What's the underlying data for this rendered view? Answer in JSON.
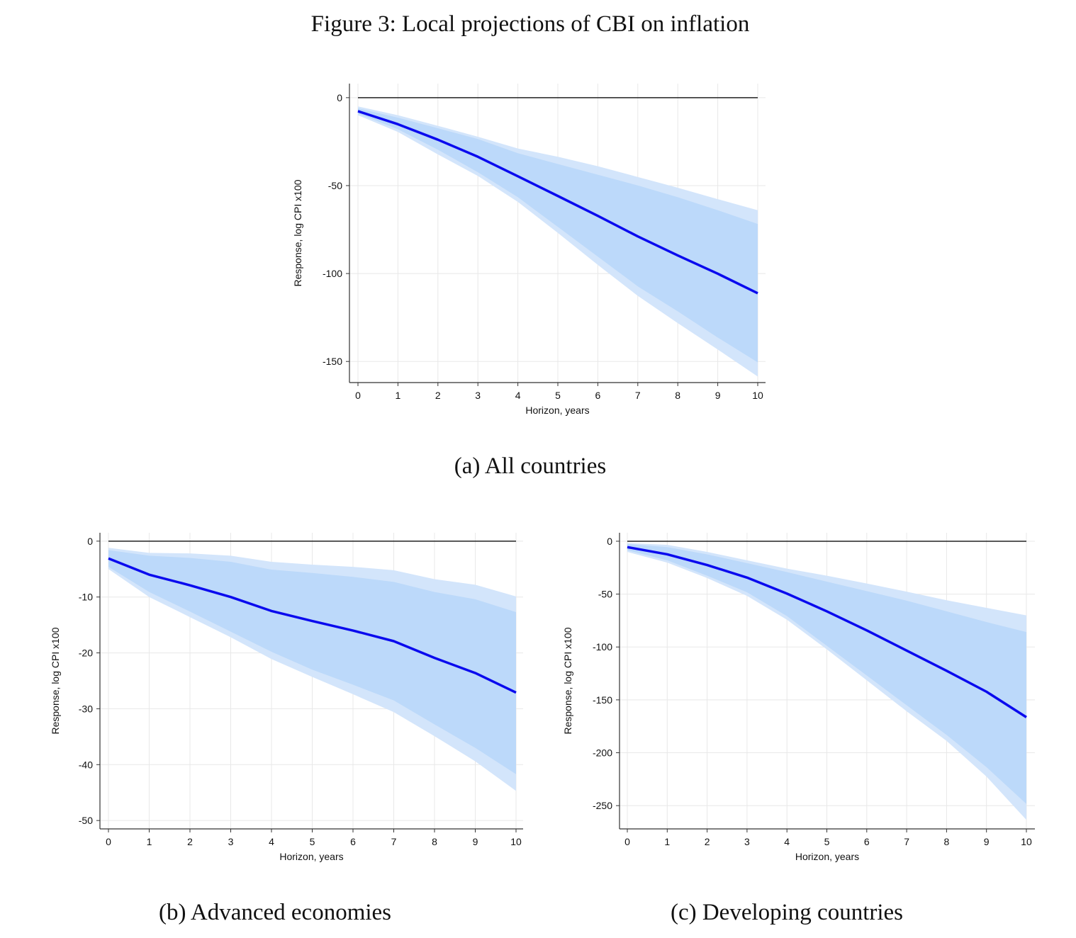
{
  "figure_title": "Figure 3: Local projections of CBI on inflation",
  "colors": {
    "line": "#0a0aee",
    "band_outer": "#d3e5fb",
    "band_inner": "#bcd9fa",
    "grid": "#e8e8e8",
    "zero_line": "#222222"
  },
  "chart_data": [
    {
      "type": "area",
      "caption": "(a) All countries",
      "xlabel": "Horizon, years",
      "ylabel": "Response, log CPI x100",
      "x": [
        0,
        1,
        2,
        3,
        4,
        5,
        6,
        7,
        8,
        9,
        10
      ],
      "xticks": [
        0,
        1,
        2,
        3,
        4,
        5,
        6,
        7,
        8,
        9,
        10
      ],
      "yticks": [
        0,
        -50,
        -100,
        -150
      ],
      "ylim": [
        -162,
        8
      ],
      "grid": true,
      "reference_line": 0,
      "series": [
        {
          "role": "point_estimate",
          "values": [
            -7.7,
            -15.1,
            -23.9,
            -33.6,
            -44.7,
            -55.9,
            -67.2,
            -78.9,
            -89.7,
            -100.1,
            -111.2
          ]
        },
        {
          "role": "outer_band_upper",
          "values": [
            -5,
            -10,
            -16,
            -22.2,
            -28.9,
            -33.6,
            -39,
            -45.1,
            -51.2,
            -57.7,
            -64
          ]
        },
        {
          "role": "outer_band_lower",
          "values": [
            -10,
            -19.5,
            -32.3,
            -44.5,
            -59.3,
            -76.9,
            -95.1,
            -112.7,
            -128.2,
            -143.2,
            -158.6
          ]
        },
        {
          "role": "inner_band_upper",
          "values": [
            -6,
            -11.4,
            -17.4,
            -23.5,
            -31.6,
            -37.7,
            -43.8,
            -49.9,
            -56.6,
            -64,
            -71.8
          ]
        },
        {
          "role": "inner_band_lower",
          "values": [
            -9,
            -18,
            -29.6,
            -42.4,
            -56.6,
            -73.5,
            -90.4,
            -107.3,
            -121.5,
            -136.4,
            -150.5
          ]
        }
      ]
    },
    {
      "type": "area",
      "caption": "(b) Advanced economies",
      "xlabel": "Horizon, years",
      "ylabel": "Response, log CPI x100",
      "x": [
        0,
        1,
        2,
        3,
        4,
        5,
        6,
        7,
        8,
        9,
        10
      ],
      "xticks": [
        0,
        1,
        2,
        3,
        4,
        5,
        6,
        7,
        8,
        9,
        10
      ],
      "yticks": [
        0,
        -10,
        -20,
        -30,
        -40,
        -50
      ],
      "ylim": [
        -51.5,
        1.5
      ],
      "grid": true,
      "reference_line": 0,
      "series": [
        {
          "role": "point_estimate",
          "values": [
            -3.1,
            -6,
            -7.9,
            -10,
            -12.5,
            -14.3,
            -16,
            -17.9,
            -20.9,
            -23.6,
            -27.1
          ]
        },
        {
          "role": "outer_band_upper",
          "values": [
            -1.2,
            -2.1,
            -2.2,
            -2.6,
            -3.7,
            -4.2,
            -4.6,
            -5.2,
            -6.8,
            -7.8,
            -9.9
          ]
        },
        {
          "role": "outer_band_lower",
          "values": [
            -5,
            -10,
            -13.6,
            -17.2,
            -21.1,
            -24.3,
            -27.4,
            -30.6,
            -34.9,
            -39.4,
            -44.7
          ]
        },
        {
          "role": "inner_band_upper",
          "values": [
            -1.6,
            -2.6,
            -3,
            -3.7,
            -5.1,
            -5.7,
            -6.4,
            -7.3,
            -9.1,
            -10.4,
            -12.7
          ]
        },
        {
          "role": "inner_band_lower",
          "values": [
            -4.6,
            -9.1,
            -12.6,
            -16.2,
            -19.8,
            -23,
            -25.7,
            -28.5,
            -32.8,
            -37,
            -41.7
          ]
        }
      ]
    },
    {
      "type": "area",
      "caption": "(c) Developing countries",
      "xlabel": "Horizon, years",
      "ylabel": "Response, log CPI x100",
      "x": [
        0,
        1,
        2,
        3,
        4,
        5,
        6,
        7,
        8,
        9,
        10
      ],
      "xticks": [
        0,
        1,
        2,
        3,
        4,
        5,
        6,
        7,
        8,
        9,
        10
      ],
      "yticks": [
        0,
        -50,
        -100,
        -150,
        -200,
        -250
      ],
      "ylim": [
        -272,
        8
      ],
      "grid": true,
      "reference_line": 0,
      "series": [
        {
          "role": "point_estimate",
          "values": [
            -5.6,
            -12.4,
            -22.5,
            -34.4,
            -49.5,
            -66.3,
            -84.3,
            -103.4,
            -122.5,
            -142.3,
            -166.4
          ]
        },
        {
          "role": "outer_band_upper",
          "values": [
            -1.8,
            -3.4,
            -10.1,
            -18,
            -25.9,
            -32.6,
            -40,
            -47.7,
            -55.8,
            -63,
            -70.1
          ]
        },
        {
          "role": "outer_band_lower",
          "values": [
            -10.1,
            -20.2,
            -34.8,
            -51.7,
            -74.2,
            -102.3,
            -131.5,
            -160.8,
            -188.8,
            -222.5,
            -263.5
          ]
        },
        {
          "role": "inner_band_upper",
          "values": [
            -2.7,
            -5.6,
            -12.4,
            -20.7,
            -29.2,
            -38.2,
            -47.2,
            -56.2,
            -66.3,
            -76.4,
            -85.9
          ]
        },
        {
          "role": "inner_band_lower",
          "values": [
            -8.5,
            -18,
            -32.6,
            -48.3,
            -70.8,
            -98.9,
            -127,
            -155.1,
            -183.2,
            -213.6,
            -248.4
          ]
        }
      ]
    }
  ]
}
